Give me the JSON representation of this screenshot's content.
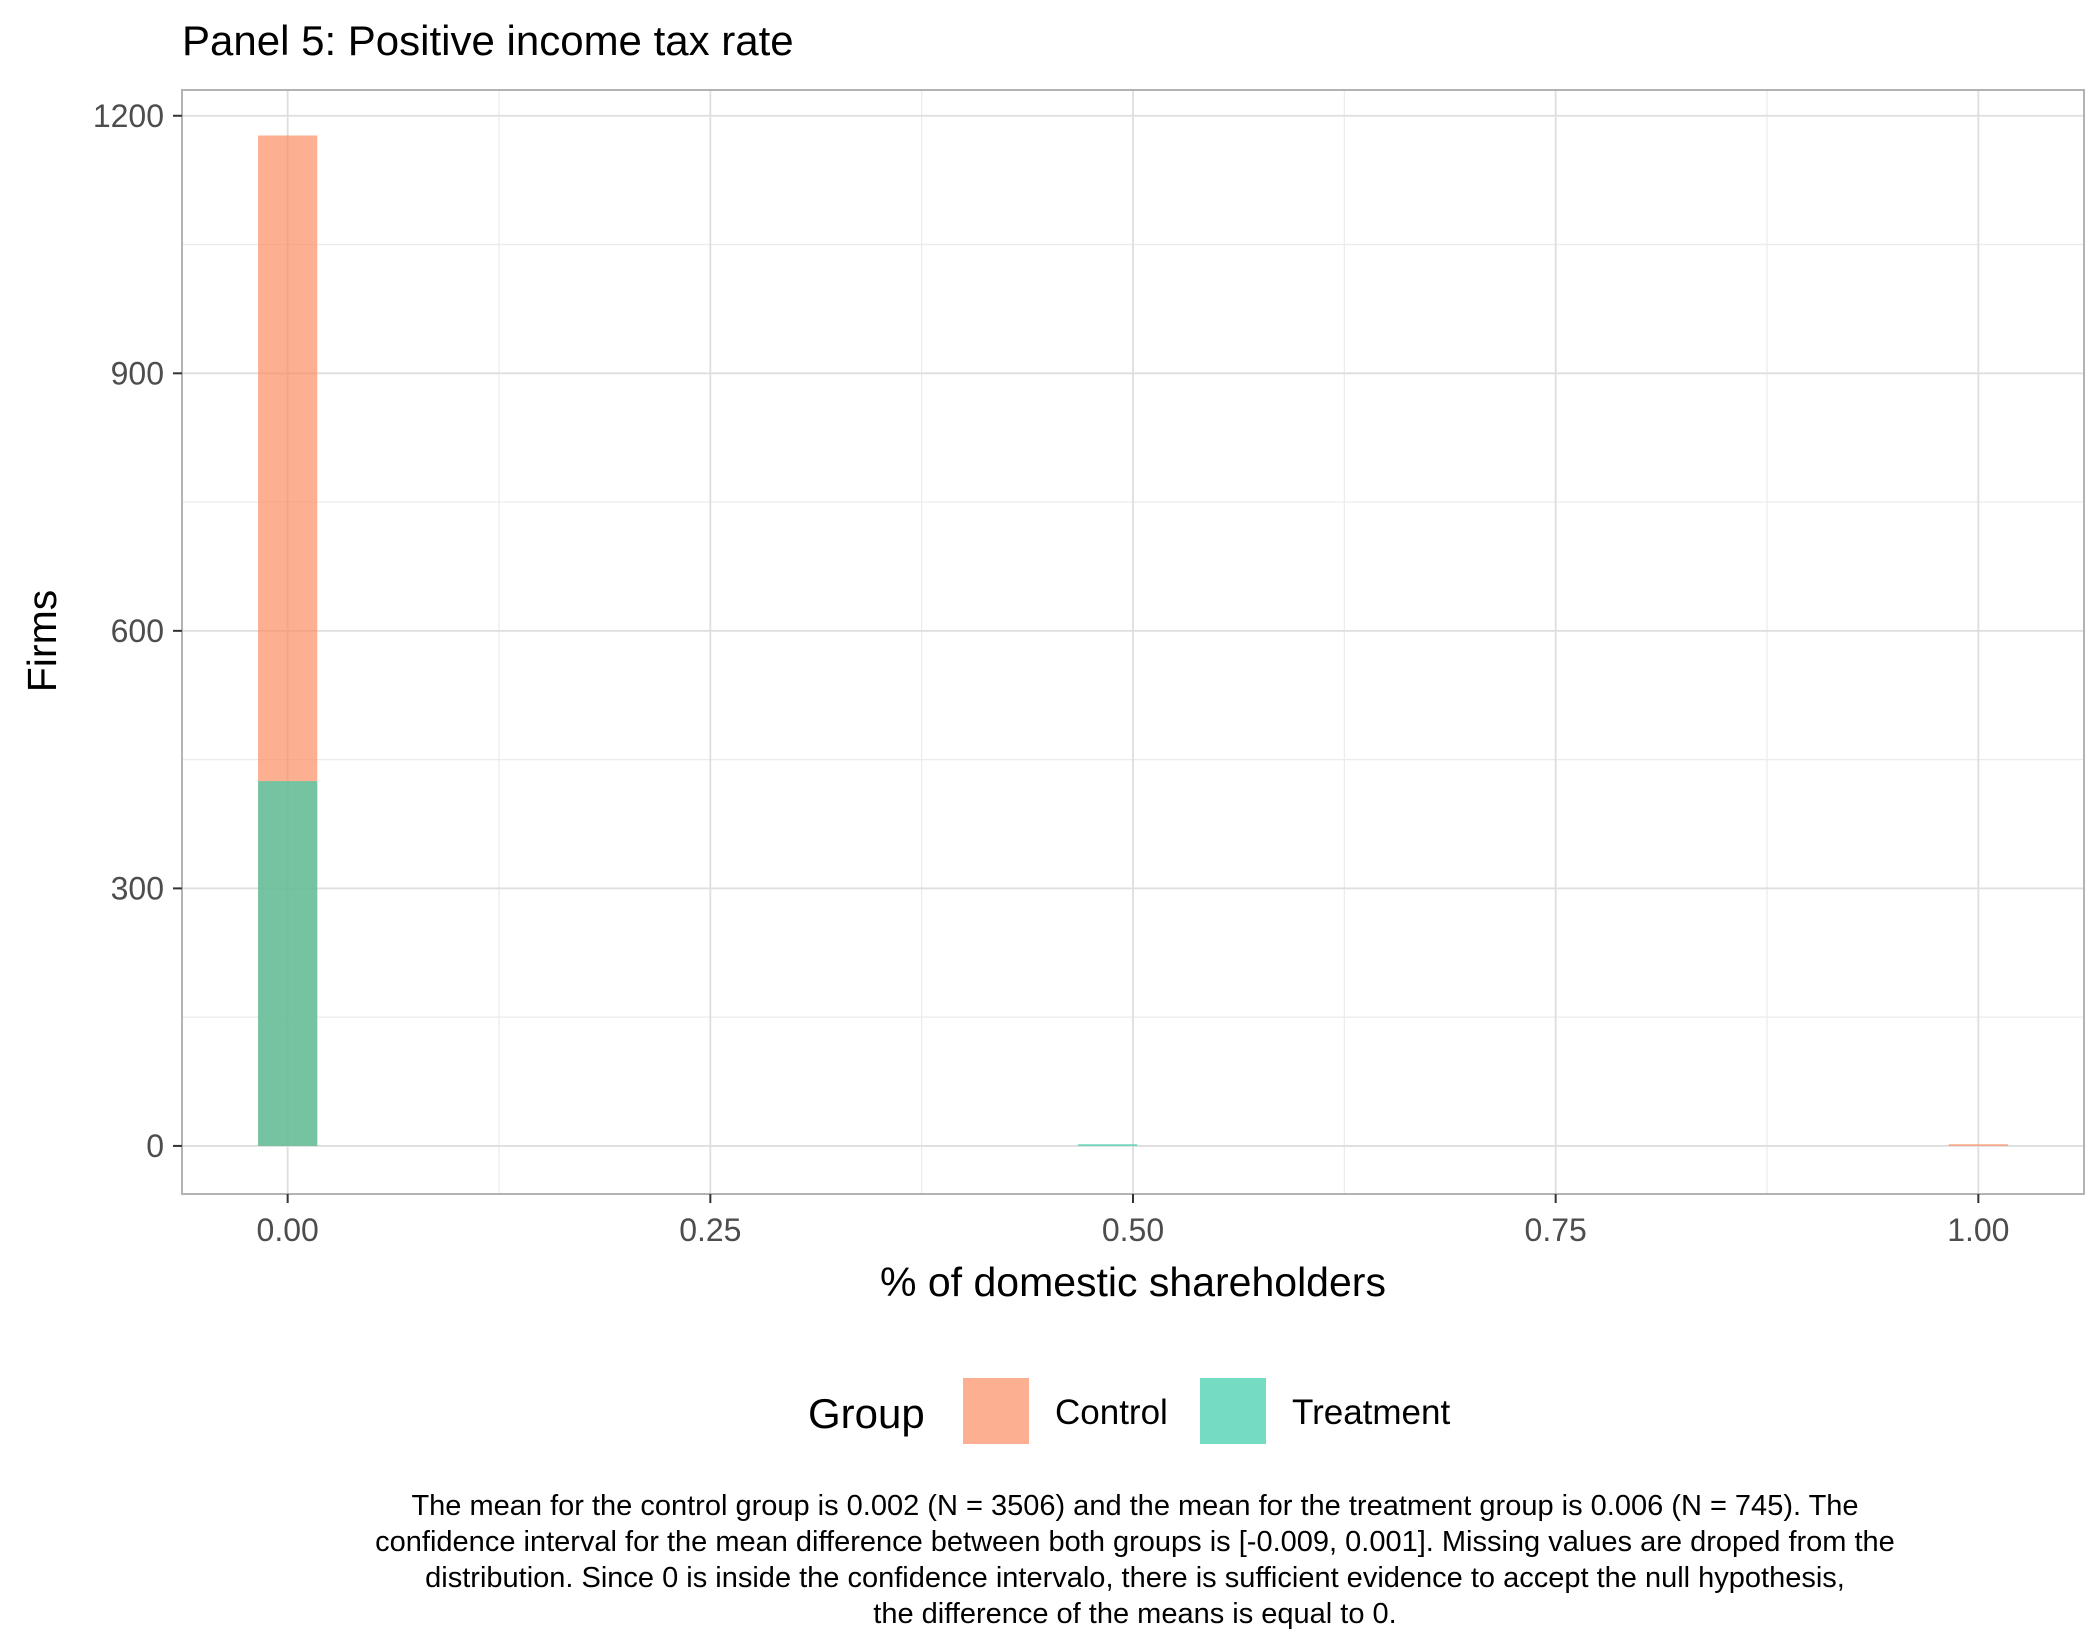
{
  "chart_data": {
    "type": "bar",
    "title": "Panel 5: Positive income tax rate",
    "xlabel": "% of domestic shareholders",
    "ylabel": "Firms",
    "xlim": [
      -0.0625,
      1.0625
    ],
    "ylim": [
      -56,
      1230
    ],
    "x_ticks": [
      0.0,
      0.25,
      0.5,
      0.75,
      1.0
    ],
    "x_tick_labels": [
      "0.00",
      "0.25",
      "0.50",
      "0.75",
      "1.00"
    ],
    "y_ticks": [
      0,
      300,
      600,
      900,
      1200
    ],
    "y_tick_labels": [
      "0",
      "300",
      "600",
      "900",
      "1200"
    ],
    "bin_width": 0.035,
    "grid": true,
    "legend": {
      "title": "Group",
      "position": "bottom",
      "entries": [
        {
          "name": "Control",
          "color": "#FC8D62"
        },
        {
          "name": "Treatment",
          "color": "#3BCCA6"
        }
      ]
    },
    "series": [
      {
        "name": "Control",
        "color": "#FC8D62",
        "opacity": 0.7,
        "bins": [
          {
            "x": 0.0,
            "value": 1177
          },
          {
            "x": 1.0,
            "value": 2
          }
        ]
      },
      {
        "name": "Treatment",
        "color": "#3BCCA6",
        "opacity": 0.7,
        "bins": [
          {
            "x": 0.0,
            "value": 425
          },
          {
            "x": 0.485,
            "value": 2
          }
        ]
      }
    ],
    "overlap_color": "#7FB58F",
    "caption_lines": [
      "The mean for the control group is 0.002 (N = 3506) and the mean for the treatment group is 0.006 (N = 745). The",
      "confidence interval for the mean difference between both groups is [-0.009, 0.001]. Missing values are droped from the",
      "distribution. Since 0 is inside the confidence intervalo, there is sufficient evidence to accept the null hypothesis,",
      "the difference of the means is equal to 0."
    ]
  }
}
